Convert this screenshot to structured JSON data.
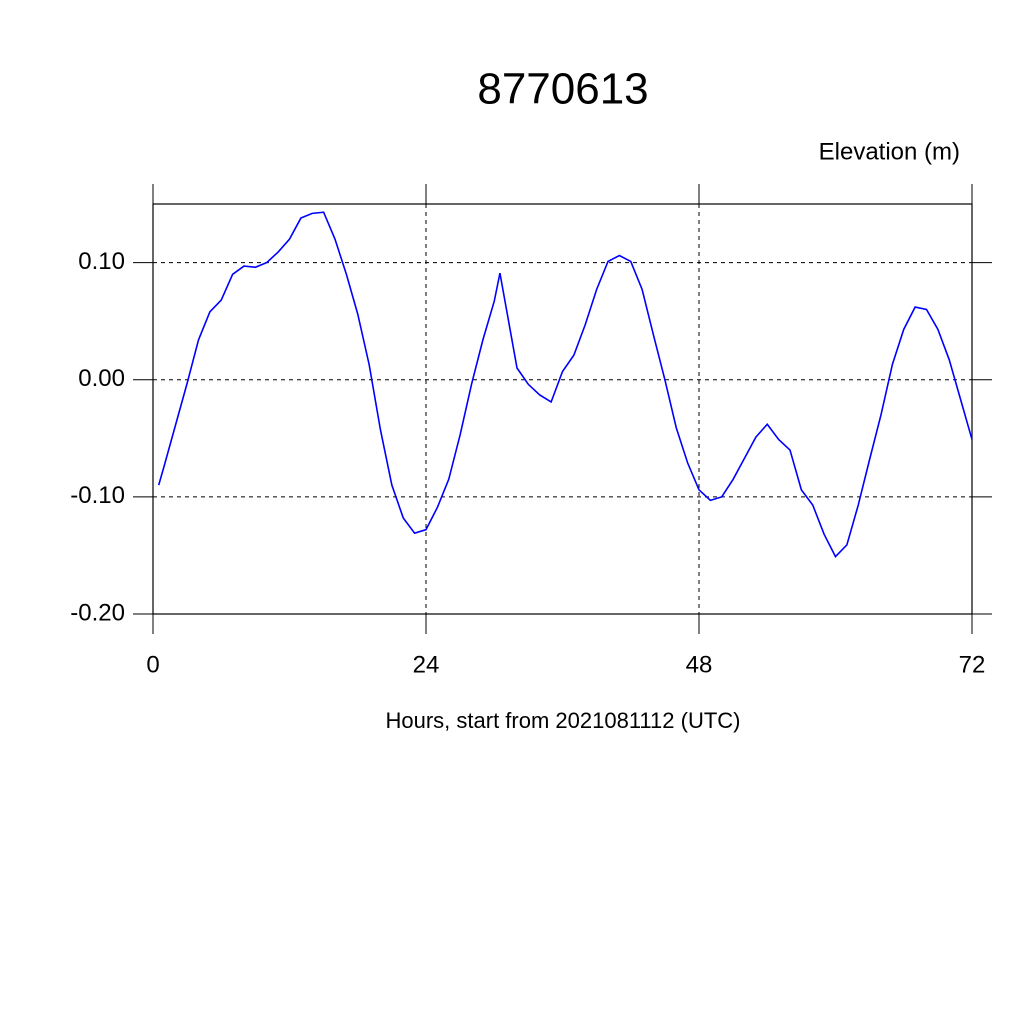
{
  "chart_data": {
    "type": "line",
    "title": "8770613",
    "subtitle": "Elevation (m)",
    "x_label": "Hours, start from 2021081112 (UTC)",
    "x": [
      0.5,
      1,
      2,
      3,
      4,
      5,
      6,
      7,
      8,
      9,
      10,
      11,
      12,
      13,
      14,
      15,
      16,
      17,
      18,
      19,
      20,
      21,
      22,
      23,
      24,
      25,
      26,
      27,
      28,
      29,
      30,
      30.5,
      31,
      32,
      33,
      34,
      35,
      36,
      37,
      38,
      39,
      40,
      41,
      42,
      43,
      44,
      45,
      46,
      47,
      48,
      49,
      50,
      51,
      52,
      53,
      54,
      55,
      56,
      57,
      58,
      59,
      60,
      61,
      62,
      63,
      64,
      65,
      66,
      67,
      68,
      69,
      70,
      71,
      72
    ],
    "values": [
      -0.09,
      -0.073,
      -0.038,
      -0.003,
      0.034,
      0.058,
      0.068,
      0.09,
      0.097,
      0.096,
      0.1,
      0.109,
      0.12,
      0.138,
      0.142,
      0.143,
      0.12,
      0.09,
      0.056,
      0.013,
      -0.043,
      -0.09,
      -0.118,
      -0.131,
      -0.128,
      -0.109,
      -0.085,
      -0.047,
      -0.004,
      0.034,
      0.067,
      0.091,
      0.064,
      0.01,
      -0.004,
      -0.013,
      -0.019,
      0.007,
      0.021,
      0.047,
      0.077,
      0.101,
      0.106,
      0.101,
      0.077,
      0.038,
      0.0,
      -0.041,
      -0.071,
      -0.094,
      -0.103,
      -0.1,
      -0.085,
      -0.067,
      -0.049,
      -0.038,
      -0.051,
      -0.06,
      -0.094,
      -0.107,
      -0.132,
      -0.151,
      -0.141,
      -0.107,
      -0.068,
      -0.03,
      0.013,
      0.043,
      0.062,
      0.06,
      0.043,
      0.017,
      -0.017,
      -0.051
    ],
    "color": "#0000ff",
    "xlim": [
      0,
      72
    ],
    "xticks": [
      0,
      24,
      48,
      72
    ],
    "ylim": [
      -0.2,
      0.15
    ],
    "yticks": [
      {
        "value": -0.2,
        "label": "-0.20"
      },
      {
        "value": -0.1,
        "label": "-0.10"
      },
      {
        "value": 0,
        "label": "0.00"
      },
      {
        "value": 0.1,
        "label": "0.10"
      }
    ],
    "grid": true
  }
}
